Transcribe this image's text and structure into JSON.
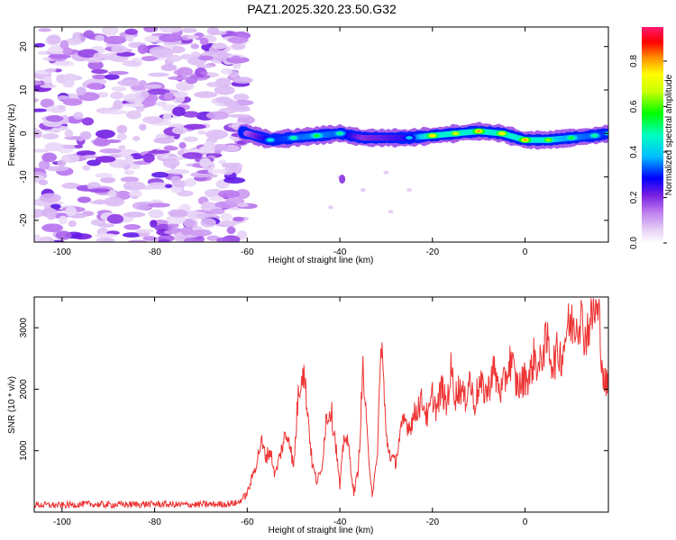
{
  "title": "PAZ1.2025.320.23.50.G32",
  "chart_data": [
    {
      "type": "heatmap",
      "title": "PAZ1.2025.320.23.50.G32",
      "xlabel": "Height of straight line (km)",
      "ylabel": "Frequency (Hz)",
      "xlim": [
        -106,
        18
      ],
      "ylim": [
        -25,
        24.5
      ],
      "xticks": [
        -100,
        -80,
        -60,
        -40,
        -20,
        0
      ],
      "yticks": [
        -20,
        -10,
        0,
        10,
        20
      ],
      "colorbar": {
        "label": "Normalized spectral amplitude",
        "range": [
          0.0,
          0.95
        ],
        "ticks": [
          0.0,
          0.2,
          0.4,
          0.6,
          0.8
        ],
        "colors": [
          "#ffffff",
          "#e8d6f6",
          "#c080f0",
          "#8a2be2",
          "#0000ff",
          "#00ffff",
          "#00ff00",
          "#ffff00",
          "#ff8000",
          "#ff0000",
          "#ff1493"
        ]
      },
      "noise_region_x": [
        -106,
        -60
      ],
      "signal_ridge": {
        "x": [
          -60,
          -55,
          -50,
          -45,
          -40,
          -35,
          -30,
          -25,
          -20,
          -15,
          -10,
          -5,
          0,
          5,
          10,
          15,
          18
        ],
        "freq": [
          0.0,
          -1.5,
          -1.0,
          -0.5,
          0.0,
          -1.0,
          -1.0,
          -1.0,
          -0.5,
          0.0,
          0.5,
          0.0,
          -1.5,
          -1.5,
          -1.0,
          -0.5,
          0.0
        ],
        "amplitude": [
          0.25,
          0.45,
          0.5,
          0.55,
          0.5,
          0.3,
          0.35,
          0.4,
          0.75,
          0.7,
          0.8,
          0.75,
          0.8,
          0.65,
          0.55,
          0.5,
          0.45
        ]
      }
    },
    {
      "type": "line",
      "xlabel": "Height of straight line (km)",
      "ylabel": "SNR (10 * v/v)",
      "xlim": [
        -106,
        18
      ],
      "ylim": [
        0,
        3500
      ],
      "xticks": [
        -100,
        -80,
        -60,
        -40,
        -20,
        0
      ],
      "yticks": [
        1000,
        2000,
        3000
      ],
      "series": [
        {
          "name": "SNR",
          "color": "#ee3333",
          "x": [
            -106,
            -100,
            -95,
            -90,
            -85,
            -80,
            -75,
            -70,
            -65,
            -62,
            -60,
            -58,
            -57,
            -56,
            -55,
            -54,
            -53,
            -52,
            -51,
            -50,
            -49,
            -48,
            -47,
            -46,
            -45,
            -44,
            -43,
            -42,
            -41,
            -40,
            -39,
            -38,
            -37,
            -36,
            -35,
            -34,
            -33,
            -32,
            -31,
            -30,
            -29,
            -28,
            -27,
            -26,
            -25,
            -24,
            -23,
            -22,
            -21,
            -20,
            -19,
            -18,
            -17,
            -16,
            -15,
            -14,
            -13,
            -12,
            -11,
            -10,
            -9,
            -8,
            -7,
            -6,
            -5,
            -4,
            -3,
            -2,
            -1,
            0,
            1,
            2,
            3,
            4,
            5,
            6,
            7,
            8,
            9,
            10,
            11,
            12,
            13,
            14,
            15,
            16,
            17,
            18
          ],
          "y": [
            120,
            110,
            130,
            120,
            125,
            130,
            120,
            125,
            130,
            150,
            300,
            800,
            1150,
            900,
            1000,
            600,
            900,
            1200,
            1250,
            700,
            1900,
            2400,
            1700,
            800,
            500,
            650,
            1500,
            1700,
            1200,
            400,
            1300,
            1000,
            300,
            700,
            2350,
            1100,
            300,
            800,
            2850,
            1200,
            900,
            800,
            1250,
            1500,
            1400,
            1550,
            1750,
            1800,
            1500,
            1900,
            1650,
            2050,
            1700,
            2300,
            1900,
            2050,
            1800,
            2200,
            1750,
            2050,
            2000,
            1950,
            2350,
            2100,
            1950,
            2250,
            2500,
            2100,
            2050,
            2200,
            2200,
            2550,
            2300,
            2700,
            2750,
            2400,
            2600,
            2550,
            3000,
            3050,
            3100,
            3200,
            2850,
            3100,
            3300,
            3150,
            2100,
            2050
          ]
        }
      ]
    }
  ]
}
